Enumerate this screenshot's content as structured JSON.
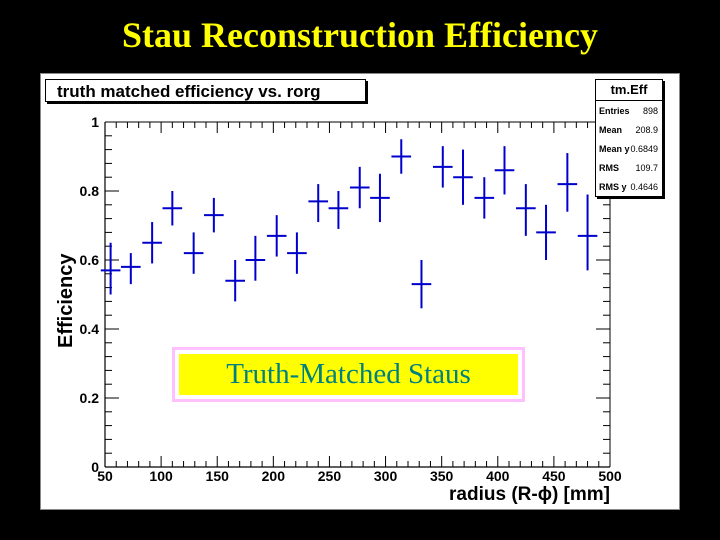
{
  "slide": {
    "title": "Stau Reconstruction Efficiency"
  },
  "plot": {
    "title": "truth matched efficiency vs. rorg",
    "annotation": "Truth-Matched Staus",
    "annotation_color": "#008080",
    "annotation_bg": "#ffff00",
    "annotation_border": "#ffc0ff"
  },
  "stats": {
    "title": "tm.Eff",
    "rows": [
      {
        "label": "Entries",
        "value": "898"
      },
      {
        "label": "Mean",
        "value": "208.9"
      },
      {
        "label": "Mean y",
        "value": "0.6849"
      },
      {
        "label": "RMS",
        "value": "109.7"
      },
      {
        "label": "RMS y",
        "value": "0.4646"
      }
    ]
  },
  "chart_data": {
    "type": "scatter",
    "title": "truth matched efficiency vs. rorg",
    "xlabel": "radius (R-ϕ) [mm]",
    "ylabel": "Efficiency",
    "xlim": [
      50,
      500
    ],
    "ylim": [
      0,
      1
    ],
    "x_ticks": [
      "50",
      "100",
      "150",
      "200",
      "250",
      "300",
      "350",
      "400",
      "450",
      "500"
    ],
    "y_ticks": [
      "0",
      "0.2",
      "0.4",
      "0.6",
      "0.8",
      "1"
    ],
    "marker_color": "#0000cc",
    "grid": false,
    "series": [
      {
        "x_bin_halfwidth": 8.75,
        "points": [
          {
            "x": 55,
            "y": 0.57,
            "ylo": 0.5,
            "yhi": 0.65
          },
          {
            "x": 73,
            "y": 0.58,
            "ylo": 0.53,
            "yhi": 0.62
          },
          {
            "x": 92,
            "y": 0.65,
            "ylo": 0.59,
            "yhi": 0.71
          },
          {
            "x": 110,
            "y": 0.75,
            "ylo": 0.7,
            "yhi": 0.8
          },
          {
            "x": 129,
            "y": 0.62,
            "ylo": 0.56,
            "yhi": 0.68
          },
          {
            "x": 147,
            "y": 0.73,
            "ylo": 0.68,
            "yhi": 0.78
          },
          {
            "x": 166,
            "y": 0.54,
            "ylo": 0.48,
            "yhi": 0.6
          },
          {
            "x": 184,
            "y": 0.6,
            "ylo": 0.54,
            "yhi": 0.67
          },
          {
            "x": 203,
            "y": 0.67,
            "ylo": 0.61,
            "yhi": 0.73
          },
          {
            "x": 221,
            "y": 0.62,
            "ylo": 0.56,
            "yhi": 0.68
          },
          {
            "x": 240,
            "y": 0.77,
            "ylo": 0.71,
            "yhi": 0.82
          },
          {
            "x": 258,
            "y": 0.75,
            "ylo": 0.69,
            "yhi": 0.8
          },
          {
            "x": 277,
            "y": 0.81,
            "ylo": 0.75,
            "yhi": 0.87
          },
          {
            "x": 295,
            "y": 0.78,
            "ylo": 0.71,
            "yhi": 0.85
          },
          {
            "x": 314,
            "y": 0.9,
            "ylo": 0.85,
            "yhi": 0.95
          },
          {
            "x": 332,
            "y": 0.53,
            "ylo": 0.46,
            "yhi": 0.6
          },
          {
            "x": 351,
            "y": 0.87,
            "ylo": 0.81,
            "yhi": 0.93
          },
          {
            "x": 369,
            "y": 0.84,
            "ylo": 0.76,
            "yhi": 0.92
          },
          {
            "x": 388,
            "y": 0.78,
            "ylo": 0.72,
            "yhi": 0.84
          },
          {
            "x": 406,
            "y": 0.86,
            "ylo": 0.79,
            "yhi": 0.93
          },
          {
            "x": 425,
            "y": 0.75,
            "ylo": 0.67,
            "yhi": 0.82
          },
          {
            "x": 443,
            "y": 0.68,
            "ylo": 0.6,
            "yhi": 0.76
          },
          {
            "x": 462,
            "y": 0.82,
            "ylo": 0.74,
            "yhi": 0.91
          },
          {
            "x": 480,
            "y": 0.67,
            "ylo": 0.57,
            "yhi": 0.79
          }
        ]
      }
    ]
  }
}
